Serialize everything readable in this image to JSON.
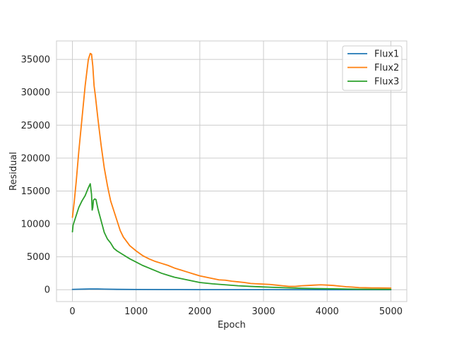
{
  "chart_data": {
    "type": "line",
    "title": "",
    "xlabel": "Epoch",
    "ylabel": "Residual",
    "xlim": [
      -250,
      5250
    ],
    "ylim": [
      -1800,
      37800
    ],
    "xticks": [
      0,
      1000,
      2000,
      3000,
      4000,
      5000
    ],
    "yticks": [
      0,
      5000,
      10000,
      15000,
      20000,
      25000,
      30000,
      35000
    ],
    "grid": true,
    "legend_position": "top-right",
    "series": [
      {
        "name": "Flux1",
        "color": "#1f77b4",
        "x": [
          0,
          100,
          200,
          300,
          400,
          500,
          700,
          1000,
          1500,
          2000,
          3000,
          4000,
          5000
        ],
        "y": [
          50,
          80,
          100,
          120,
          110,
          90,
          60,
          40,
          25,
          15,
          10,
          5,
          5
        ]
      },
      {
        "name": "Flux2",
        "color": "#ff7f0e",
        "x": [
          0,
          30,
          60,
          100,
          150,
          200,
          250,
          280,
          300,
          320,
          340,
          360,
          400,
          450,
          500,
          550,
          600,
          650,
          700,
          750,
          800,
          900,
          1000,
          1100,
          1200,
          1300,
          1400,
          1500,
          1600,
          1700,
          1800,
          1900,
          2000,
          2100,
          2200,
          2300,
          2400,
          2500,
          2600,
          2700,
          2800,
          2900,
          3000,
          3100,
          3200,
          3300,
          3400,
          3500,
          3600,
          3700,
          3800,
          3900,
          4000,
          4100,
          4200,
          4300,
          4400,
          4500,
          4600,
          4700,
          4800,
          4900,
          5000
        ],
        "y": [
          11000,
          13500,
          16500,
          21000,
          26000,
          31000,
          35000,
          35900,
          35800,
          34000,
          31000,
          29500,
          26000,
          22000,
          18500,
          15800,
          13500,
          12000,
          10500,
          9000,
          8000,
          6700,
          5900,
          5200,
          4700,
          4300,
          4000,
          3700,
          3300,
          3000,
          2700,
          2400,
          2100,
          1900,
          1700,
          1500,
          1450,
          1300,
          1200,
          1100,
          950,
          900,
          850,
          800,
          700,
          600,
          500,
          500,
          600,
          650,
          700,
          750,
          700,
          650,
          550,
          450,
          400,
          320,
          300,
          280,
          270,
          260,
          250
        ]
      },
      {
        "name": "Flux3",
        "color": "#2ca02c",
        "x": [
          0,
          10,
          50,
          100,
          150,
          200,
          250,
          280,
          300,
          310,
          320,
          330,
          350,
          370,
          400,
          450,
          500,
          550,
          600,
          650,
          700,
          800,
          900,
          1000,
          1100,
          1200,
          1300,
          1400,
          1500,
          1600,
          1700,
          1800,
          1900,
          2000,
          2200,
          2400,
          2600,
          2800,
          3000,
          3200,
          3400,
          3600,
          3800,
          4000,
          4500,
          5000
        ],
        "y": [
          8800,
          9800,
          11000,
          12500,
          13500,
          14300,
          15500,
          16100,
          14500,
          12100,
          12500,
          13600,
          13800,
          13700,
          12300,
          10500,
          8700,
          7700,
          7100,
          6300,
          5900,
          5300,
          4700,
          4200,
          3700,
          3300,
          2900,
          2500,
          2200,
          1900,
          1700,
          1500,
          1300,
          1100,
          900,
          750,
          600,
          500,
          420,
          350,
          280,
          220,
          180,
          150,
          80,
          50
        ]
      }
    ]
  }
}
